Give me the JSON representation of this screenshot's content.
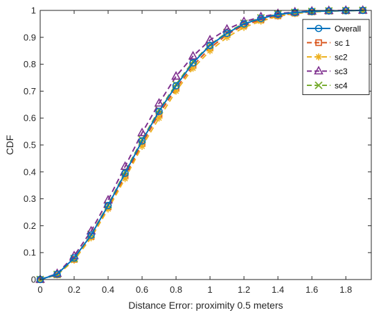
{
  "chart_data": {
    "type": "line",
    "title": "",
    "xlabel": "Distance Error: proximity 0.5 meters",
    "ylabel": "CDF",
    "xlim": [
      0,
      1.95
    ],
    "ylim": [
      0,
      1
    ],
    "xticks": [
      0,
      0.2,
      0.4,
      0.6,
      0.8,
      1,
      1.2,
      1.4,
      1.6,
      1.8
    ],
    "xtick_labels": [
      "0",
      "0.2",
      "0.4",
      "0.6",
      "0.8",
      "1",
      "1.2",
      "1.4",
      "1.6",
      "1.8"
    ],
    "yticks": [
      0,
      0.1,
      0.2,
      0.3,
      0.4,
      0.5,
      0.6,
      0.7,
      0.8,
      0.9,
      1
    ],
    "ytick_labels": [
      "0",
      "0.1",
      "0.2",
      "0.3",
      "0.4",
      "0.5",
      "0.6",
      "0.7",
      "0.8",
      "0.9",
      "1"
    ],
    "grid": false,
    "legend_position": "top-right",
    "x": [
      0,
      0.1,
      0.2,
      0.3,
      0.4,
      0.5,
      0.6,
      0.7,
      0.8,
      0.9,
      1.0,
      1.1,
      1.2,
      1.3,
      1.4,
      1.5,
      1.6,
      1.7,
      1.8,
      1.9
    ],
    "series": [
      {
        "name": "Overall",
        "color": "#0072bd",
        "dash": "solid",
        "marker": "circle",
        "values": [
          0,
          0.02,
          0.08,
          0.165,
          0.275,
          0.395,
          0.515,
          0.625,
          0.72,
          0.805,
          0.87,
          0.915,
          0.95,
          0.97,
          0.985,
          0.992,
          0.996,
          0.998,
          0.999,
          1.0
        ]
      },
      {
        "name": "sc 1",
        "color": "#d95319",
        "dash": "dashed",
        "marker": "square",
        "values": [
          0,
          0.018,
          0.075,
          0.16,
          0.27,
          0.385,
          0.505,
          0.615,
          0.71,
          0.795,
          0.86,
          0.91,
          0.945,
          0.965,
          0.98,
          0.99,
          0.995,
          0.998,
          0.999,
          1.0
        ]
      },
      {
        "name": "sc2",
        "color": "#edb120",
        "dash": "dashed",
        "marker": "asterisk",
        "values": [
          0,
          0.017,
          0.072,
          0.155,
          0.262,
          0.375,
          0.495,
          0.6,
          0.7,
          0.785,
          0.85,
          0.9,
          0.937,
          0.96,
          0.978,
          0.988,
          0.994,
          0.997,
          0.999,
          1.0
        ]
      },
      {
        "name": "sc3",
        "color": "#7e2f8e",
        "dash": "dashed",
        "marker": "triangle",
        "values": [
          0,
          0.022,
          0.088,
          0.18,
          0.295,
          0.42,
          0.545,
          0.655,
          0.755,
          0.83,
          0.89,
          0.93,
          0.958,
          0.976,
          0.988,
          0.994,
          0.997,
          0.999,
          1.0,
          1.0
        ]
      },
      {
        "name": "sc4",
        "color": "#77ac30",
        "dash": "dashed",
        "marker": "x",
        "values": [
          0,
          0.019,
          0.078,
          0.168,
          0.278,
          0.4,
          0.52,
          0.63,
          0.725,
          0.81,
          0.872,
          0.918,
          0.952,
          0.972,
          0.986,
          0.993,
          0.996,
          0.998,
          0.999,
          1.0
        ]
      }
    ]
  }
}
